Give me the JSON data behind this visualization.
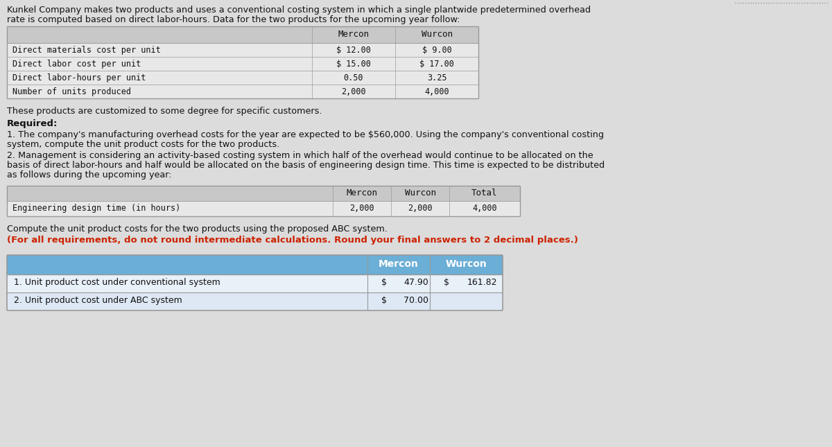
{
  "bg_color": "#dcdcdc",
  "table1_header_bg": "#c8c8c8",
  "table1_row_bg": "#e8e8e8",
  "table2_header_bg": "#c8c8c8",
  "table2_row_bg": "#e8e8e8",
  "results_header_bg": "#6baed6",
  "results_row1_bg": "#e8f0f8",
  "results_row2_bg": "#dde8f4",
  "line_color": "#aaaaaa",
  "text_black": "#111111",
  "text_red": "#cc2200",
  "intro_line1": "Kunkel Company makes two products and uses a conventional costing system in which a single plantwide predetermined overhead",
  "intro_line2": "rate is computed based on direct labor-hours. Data for the two products for the upcoming year follow:",
  "t1_rows": [
    "Direct materials cost per unit",
    "Direct labor cost per unit",
    "Direct labor-hours per unit",
    "Number of units produced"
  ],
  "t1_mercon": [
    "$ 12.00",
    "$ 15.00",
    "0.50",
    "2,000"
  ],
  "t1_wurcon": [
    "$ 9.00",
    "$ 17.00",
    "3.25",
    "4,000"
  ],
  "customized": "These products are customized to some degree for specific customers.",
  "required": "Required:",
  "req1a": "1. The company's manufacturing overhead costs for the year are expected to be $560,000. Using the company's conventional costing",
  "req1b": "system, compute the unit product costs for the two products.",
  "req2a": "2. Management is considering an activity-based costing system in which half of the overhead would continue to be allocated on the",
  "req2b": "basis of direct labor-hours and half would be allocated on the basis of engineering design time. This time is expected to be distributed",
  "req2c": "as follows during the upcoming year:",
  "t2_row_label": "Engineering design time (in hours)",
  "t2_mercon": "2,000",
  "t2_wurcon": "2,000",
  "t2_total": "4,000",
  "compute": "Compute the unit product costs for the two products using the proposed ABC system.",
  "round_note": "(For all requirements, do not round intermediate calculations. Round your final answers to 2 decimal places.)",
  "r_label1": "1. Unit product cost under conventional system",
  "r_label2": "2. Unit product cost under ABC system",
  "r1_m_sym": "$",
  "r1_m_val": "47.90",
  "r1_w_sym": "$",
  "r1_w_val": "161.82",
  "r2_m_sym": "$",
  "r2_m_val": "70.00"
}
